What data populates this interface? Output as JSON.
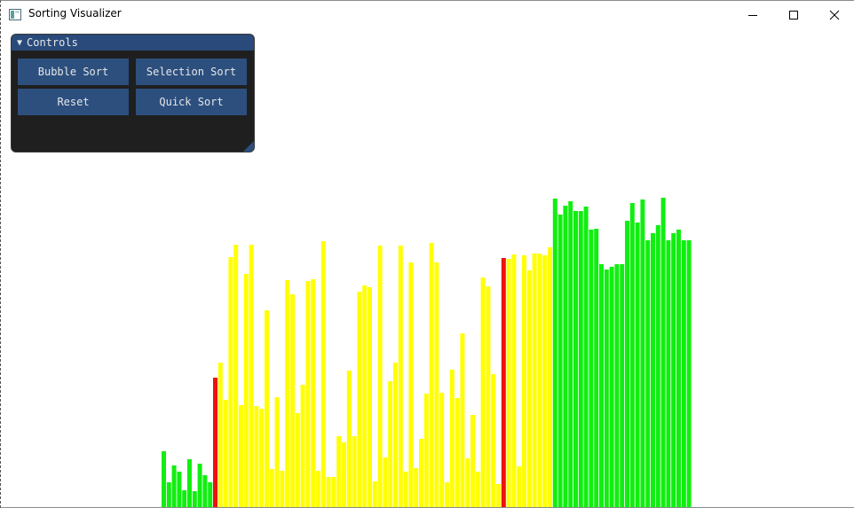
{
  "window": {
    "title": "Sorting Visualizer",
    "icon": "app-window-icon",
    "controls": [
      "minimize-icon",
      "maximize-icon",
      "close-icon"
    ]
  },
  "controls_panel": {
    "title": "Controls",
    "collapse_icon": "triangle-down-icon",
    "buttons": {
      "bubble_sort": "Bubble Sort",
      "selection_sort": "Selection Sort",
      "reset": "Reset",
      "quick_sort": "Quick Sort"
    }
  },
  "colors": {
    "sorted": "#11ee11",
    "unsorted": "#ffff00",
    "active": "#ee1111",
    "panel_bg": "#1f1f1f",
    "panel_header": "#294a7a",
    "button": "#2c4f7e"
  },
  "bars": {
    "max_value": 541,
    "values": [
      63,
      28,
      47,
      40,
      19,
      54,
      18,
      49,
      36,
      28,
      146,
      163,
      121,
      282,
      296,
      115,
      263,
      296,
      114,
      111,
      222,
      43,
      124,
      41,
      256,
      240,
      106,
      138,
      255,
      257,
      41,
      300,
      34,
      34,
      80,
      73,
      154,
      80,
      243,
      250,
      248,
      29,
      295,
      56,
      142,
      163,
      295,
      40,
      276,
      44,
      77,
      128,
      298,
      276,
      129,
      28,
      155,
      123,
      196,
      55,
      104,
      40,
      259,
      249,
      150,
      26,
      281,
      280,
      285,
      46,
      284,
      267,
      286,
      286,
      284,
      293,
      348,
      330,
      340,
      345,
      334,
      334,
      339,
      313,
      314,
      274,
      268,
      271,
      274,
      274,
      323,
      343,
      321,
      347,
      301,
      309,
      318,
      349,
      301,
      309,
      313,
      301,
      301
    ],
    "colors": [
      "g",
      "g",
      "g",
      "g",
      "g",
      "g",
      "g",
      "g",
      "g",
      "g",
      "r",
      "y",
      "y",
      "y",
      "y",
      "y",
      "y",
      "y",
      "y",
      "y",
      "y",
      "y",
      "y",
      "y",
      "y",
      "y",
      "y",
      "y",
      "y",
      "y",
      "y",
      "y",
      "y",
      "y",
      "y",
      "y",
      "y",
      "y",
      "y",
      "y",
      "y",
      "y",
      "y",
      "y",
      "y",
      "y",
      "y",
      "y",
      "y",
      "y",
      "y",
      "y",
      "y",
      "y",
      "y",
      "y",
      "y",
      "y",
      "y",
      "y",
      "y",
      "y",
      "y",
      "y",
      "y",
      "y",
      "r",
      "y",
      "y",
      "y",
      "y",
      "y",
      "y",
      "y",
      "y",
      "y",
      "g",
      "g",
      "g",
      "g",
      "g",
      "g",
      "g",
      "g",
      "g",
      "g",
      "g",
      "g",
      "g",
      "g",
      "g",
      "g",
      "g",
      "g",
      "g",
      "g",
      "g",
      "g",
      "g",
      "g",
      "g",
      "g",
      "g"
    ]
  }
}
